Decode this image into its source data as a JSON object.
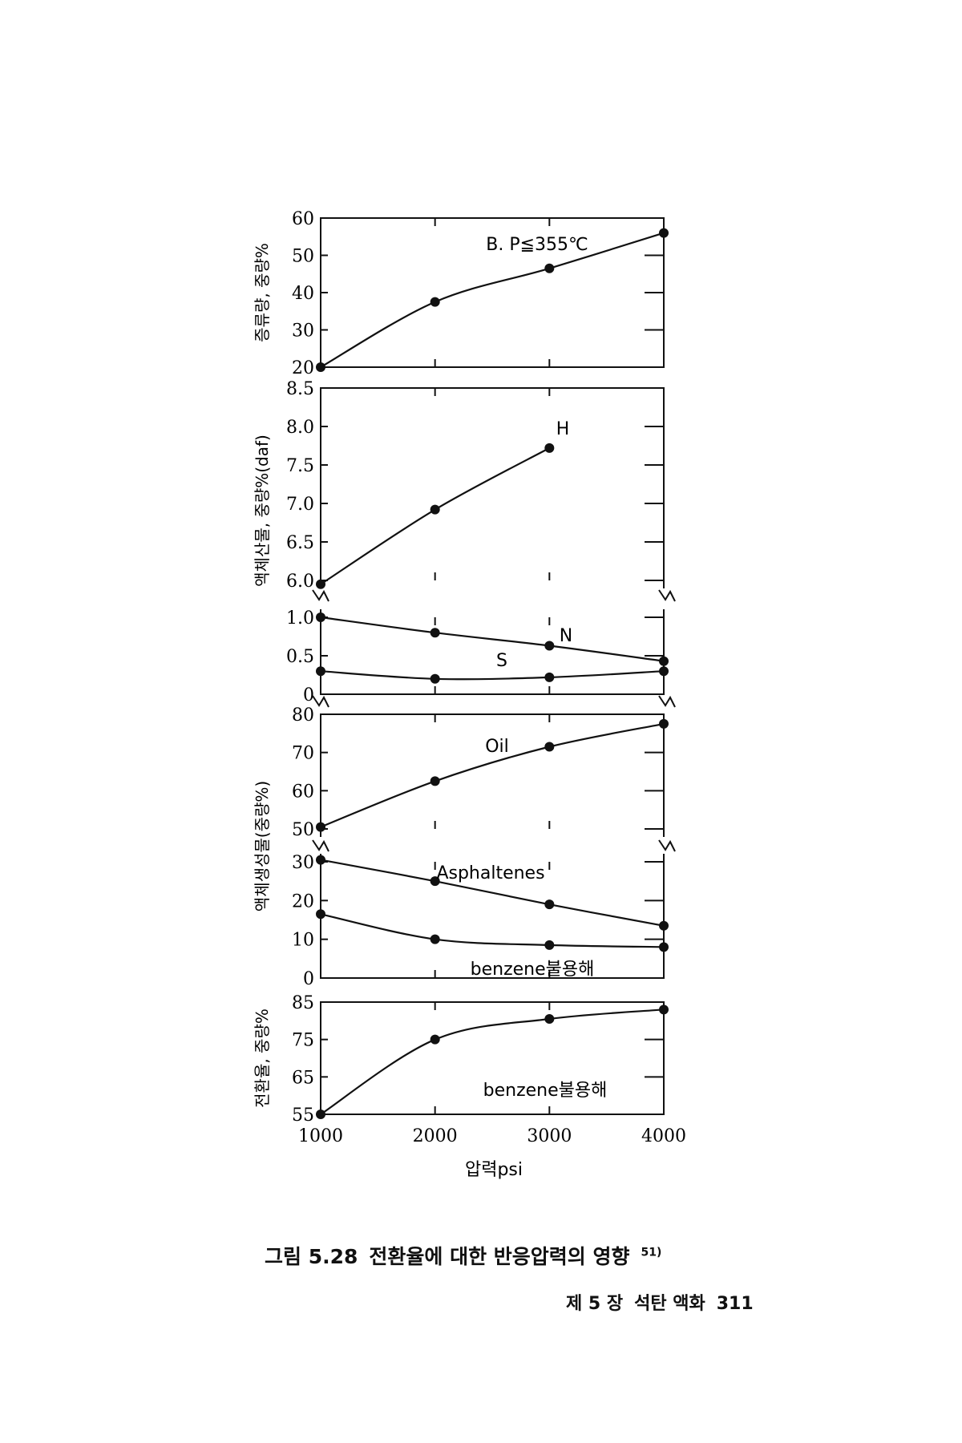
{
  "caption": {
    "label": "그림 5.28",
    "text": "전환율에 대한 반응압력의 영향",
    "ref": "51)"
  },
  "footer": {
    "chapter": "제 5 장",
    "title": "석탄 액화",
    "page": "311"
  },
  "chart_data": [
    {
      "type": "line",
      "ylabel": "증류량, 중량%",
      "xlim": [
        1000,
        4000
      ],
      "ylim": [
        20,
        60
      ],
      "yticks": [
        "20",
        "30",
        "40",
        "50",
        "60"
      ],
      "series": [
        {
          "name": "B. P≦355℃",
          "x": [
            1000,
            2000,
            3000,
            4000
          ],
          "y": [
            20,
            37.5,
            46.5,
            56
          ]
        }
      ]
    },
    {
      "type": "line",
      "ylabel": "액체산물, 중량%(daf)",
      "xlim": [
        1000,
        4000
      ],
      "ylim": [
        6.0,
        8.5
      ],
      "yticks": [
        "6.0",
        "6.5",
        "7.0",
        "7.5",
        "8.0",
        "8.5"
      ],
      "series": [
        {
          "name": "H",
          "x": [
            1000,
            2000,
            3000
          ],
          "y": [
            5.95,
            6.92,
            7.72
          ]
        }
      ]
    },
    {
      "type": "line",
      "xlim": [
        1000,
        4000
      ],
      "ylim": [
        0,
        1.0
      ],
      "yticks": [
        "0",
        "0.5",
        "1.0"
      ],
      "series": [
        {
          "name": "N",
          "x": [
            1000,
            2000,
            3000,
            4000
          ],
          "y": [
            1.0,
            0.8,
            0.63,
            0.43
          ]
        },
        {
          "name": "S",
          "x": [
            1000,
            2000,
            3000,
            4000
          ],
          "y": [
            0.3,
            0.2,
            0.22,
            0.3
          ]
        }
      ]
    },
    {
      "type": "line",
      "ylabel": "액체생성물(중량%)",
      "xlim": [
        1000,
        4000
      ],
      "ylim": [
        50,
        80
      ],
      "yticks": [
        "50",
        "60",
        "70",
        "80"
      ],
      "series": [
        {
          "name": "Oil",
          "x": [
            1000,
            2000,
            3000,
            4000
          ],
          "y": [
            50.5,
            62.5,
            71.5,
            77.5
          ]
        }
      ]
    },
    {
      "type": "line",
      "xlim": [
        1000,
        4000
      ],
      "ylim": [
        0,
        30
      ],
      "yticks": [
        "0",
        "10",
        "20",
        "30"
      ],
      "series": [
        {
          "name": "Asphaltenes",
          "x": [
            1000,
            2000,
            3000,
            4000
          ],
          "y": [
            30.5,
            25,
            19,
            13.5
          ]
        },
        {
          "name": "benzene불용해",
          "x": [
            1000,
            2000,
            3000,
            4000
          ],
          "y": [
            16.5,
            10,
            8.5,
            8
          ]
        }
      ]
    },
    {
      "type": "line",
      "ylabel": "전환율, 중량%",
      "xlabel": "압력psi",
      "xlim": [
        1000,
        4000
      ],
      "ylim": [
        55,
        85
      ],
      "yticks": [
        "55",
        "65",
        "75",
        "85"
      ],
      "xticks": [
        "1000",
        "2000",
        "3000",
        "4000"
      ],
      "series": [
        {
          "name": "benzene불용해",
          "x": [
            1000,
            2000,
            3000,
            4000
          ],
          "y": [
            55,
            75,
            80.5,
            83
          ]
        }
      ]
    }
  ]
}
